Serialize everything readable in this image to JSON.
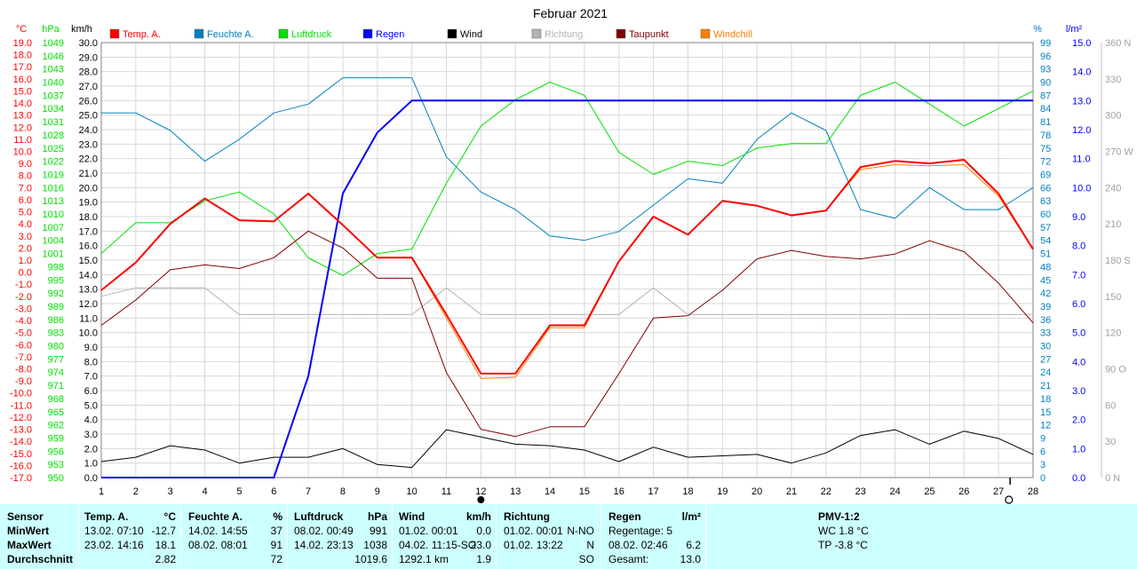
{
  "chart_data": {
    "type": "line",
    "title": "Februar 2021",
    "x": [
      1,
      2,
      3,
      4,
      5,
      6,
      7,
      8,
      9,
      10,
      11,
      12,
      13,
      14,
      15,
      16,
      17,
      18,
      19,
      20,
      21,
      22,
      23,
      24,
      25,
      26,
      27,
      28
    ],
    "axes": {
      "temp": {
        "unit": "°C",
        "min": -17,
        "max": 19,
        "step": 1
      },
      "pressure": {
        "unit": "hPa",
        "min": 950,
        "max": 1049,
        "step": 3
      },
      "wind": {
        "unit": "km/h",
        "min": 0,
        "max": 30,
        "step": 1
      },
      "humidity": {
        "unit": "%",
        "min": 0,
        "max": 99,
        "step": 3
      },
      "rain": {
        "unit": "l/m²",
        "min": 0,
        "max": 15,
        "step": 1
      },
      "direction": {
        "unit": "",
        "min": 0,
        "max": 360,
        "step": 30,
        "labels": {
          "0": "0 N",
          "90": "90 O",
          "180": "180 S",
          "270": "270 W",
          "360": "360 N"
        }
      }
    },
    "series": [
      {
        "name": "Temp. A.",
        "color": "#ff0000",
        "axis": "temp",
        "width": 2,
        "values": [
          -1.5,
          0.8,
          4.0,
          6.1,
          4.3,
          4.2,
          6.5,
          3.9,
          1.2,
          1.2,
          -3.5,
          -8.4,
          -8.4,
          -4.4,
          -4.4,
          0.9,
          4.6,
          3.1,
          5.9,
          5.5,
          4.7,
          5.1,
          8.7,
          9.2,
          9.0,
          9.3,
          6.5,
          1.9
        ]
      },
      {
        "name": "Feuchte A.",
        "color": "#0080c0",
        "axis": "humidity",
        "width": 1,
        "values": [
          83,
          83,
          79,
          72,
          77,
          83,
          85,
          91,
          91,
          91,
          73,
          65,
          61,
          55,
          54,
          56,
          62,
          68,
          67,
          77,
          83,
          79,
          61,
          59,
          66,
          61,
          61,
          66
        ]
      },
      {
        "name": "Luftdruck",
        "color": "#00e000",
        "axis": "pressure",
        "width": 1,
        "values": [
          1001,
          1008,
          1008,
          1013,
          1015,
          1010,
          1000,
          996,
          1001,
          1002,
          1017,
          1030,
          1036,
          1040,
          1037,
          1024,
          1019,
          1022,
          1021,
          1025,
          1026,
          1026,
          1037,
          1040,
          1035,
          1030,
          1034,
          1038
        ]
      },
      {
        "name": "Regen",
        "color": "#0000ff",
        "axis": "rain",
        "width": 2,
        "values": [
          0,
          0,
          0,
          0,
          0,
          0,
          3.5,
          9.8,
          11.9,
          13.0,
          13.0,
          13.0,
          13.0,
          13.0,
          13.0,
          13.0,
          13.0,
          13.0,
          13.0,
          13.0,
          13.0,
          13.0,
          13.0,
          13.0,
          13.0,
          13.0,
          13.0,
          13.0
        ]
      },
      {
        "name": "Wind",
        "color": "#000000",
        "axis": "wind",
        "width": 1,
        "values": [
          1.1,
          1.4,
          2.2,
          1.9,
          1.0,
          1.4,
          1.4,
          2.0,
          0.9,
          0.7,
          3.3,
          2.8,
          2.3,
          2.2,
          1.9,
          1.1,
          2.1,
          1.4,
          1.5,
          1.6,
          1.0,
          1.7,
          2.9,
          3.3,
          2.3,
          3.2,
          2.7,
          1.6
        ]
      },
      {
        "name": "Richtung",
        "color": "#b4b4b4",
        "axis": "direction",
        "width": 1,
        "values": [
          150,
          157,
          157,
          157,
          135,
          135,
          135,
          135,
          135,
          135,
          157,
          135,
          135,
          135,
          135,
          135,
          157,
          135,
          135,
          135,
          135,
          135,
          135,
          135,
          135,
          135,
          135,
          135
        ]
      },
      {
        "name": "Taupunkt",
        "color": "#800000",
        "axis": "temp",
        "width": 1,
        "values": [
          -4.4,
          -2.3,
          0.2,
          0.6,
          0.3,
          1.2,
          3.4,
          2.0,
          -0.5,
          -0.5,
          -8.3,
          -13.0,
          -13.6,
          -12.8,
          -12.8,
          -8.4,
          -3.8,
          -3.6,
          -1.5,
          1.1,
          1.8,
          1.3,
          1.1,
          1.5,
          2.6,
          1.7,
          -0.9,
          -4.2
        ]
      },
      {
        "name": "Windchill",
        "color": "#ff8000",
        "axis": "temp",
        "width": 1,
        "values": [
          -1.5,
          0.8,
          4.0,
          6.1,
          4.3,
          4.2,
          6.5,
          3.9,
          1.2,
          1.2,
          -3.8,
          -8.8,
          -8.7,
          -4.6,
          -4.6,
          0.9,
          4.6,
          3.1,
          5.9,
          5.5,
          4.7,
          5.1,
          8.5,
          8.9,
          8.8,
          8.9,
          6.3,
          1.9
        ]
      }
    ],
    "markers": [
      {
        "x": 12,
        "symbol": "filled-circle"
      },
      {
        "x": 27,
        "symbol": "tick"
      },
      {
        "x": 27.3,
        "symbol": "open-circle"
      }
    ],
    "grid": true
  },
  "stats": {
    "sensor": {
      "header": "Sensor",
      "rows": [
        "MinWert",
        "MaxWert",
        "Durchschnitt"
      ]
    },
    "temp": {
      "header": "Temp. A.",
      "unit": "°C",
      "min_time": "13.02.  07:10",
      "min_val": "-12.7",
      "max_time": "23.02.  14:16",
      "max_val": "18.1",
      "avg_val": "2.82"
    },
    "humidity": {
      "header": "Feuchte A.",
      "unit": "%",
      "min_time": "14.02.  14:55",
      "min_val": "37",
      "max_time": "08.02.  08:01",
      "max_val": "91",
      "avg_val": "72"
    },
    "pressure": {
      "header": "Luftdruck",
      "unit": "hPa",
      "min_time": "08.02.  00:49",
      "min_val": "991",
      "max_time": "14.02.  23:13",
      "max_val": "1038",
      "avg_val": "1019.6"
    },
    "wind": {
      "header": "Wind",
      "unit": "km/h",
      "min_time": "01.02.  00:01",
      "min_val": "0.0",
      "max_time": "04.02.  11:15",
      "max_dir": "-SO",
      "max_val": "23.0",
      "avg_text": "1292.1 km",
      "avg_val": "1.9"
    },
    "direction": {
      "header": "Richtung",
      "min_time": "01.02.  00:01",
      "min_val": "N-NO",
      "max_time": "01.02.  13:22",
      "max_val": "N",
      "avg_val": "SO"
    },
    "rain": {
      "header": "Regen",
      "unit": "l/m²",
      "row1": "Regentage: 5",
      "max_time": "08.02.  02:46",
      "max_val": "6.2",
      "total_label": "Gesamt:",
      "total_val": "13.0"
    },
    "pmv": {
      "header": "PMV-1:2",
      "wc": "WC 1.8 °C",
      "tp": "TP -3.8 °C"
    }
  }
}
